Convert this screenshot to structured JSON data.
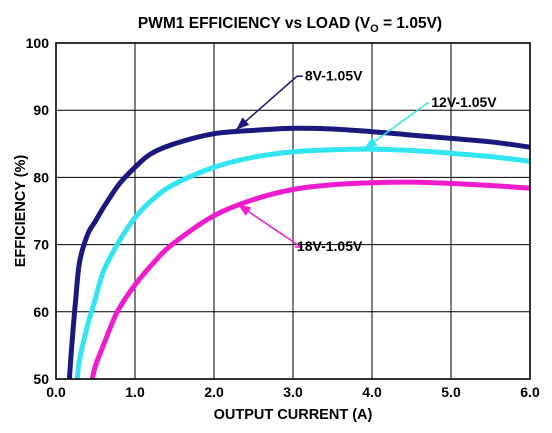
{
  "chart_data": {
    "type": "line",
    "title": {
      "prefix": "PWM1 EFFICIENCY vs LOAD (V",
      "subscript": "O",
      "suffix": " = 1.05V)"
    },
    "xlabel": "OUTPUT CURRENT (A)",
    "ylabel": "EFFICIENCY (%)",
    "xlim": [
      0,
      6
    ],
    "ylim": [
      50,
      100
    ],
    "xticks": [
      0,
      1,
      2,
      3,
      4,
      5,
      6
    ],
    "xtick_labels": [
      "0.0",
      "1.0",
      "2.0",
      "3.0",
      "4.0",
      "5.0",
      "6.0"
    ],
    "yticks": [
      50,
      60,
      70,
      80,
      90,
      100
    ],
    "ytick_labels": [
      "50",
      "60",
      "70",
      "80",
      "90",
      "100"
    ],
    "grid": true,
    "series": [
      {
        "name": "8V-1.05V",
        "color": "#1a1a7e",
        "x": [
          0.17,
          0.2,
          0.25,
          0.3,
          0.4,
          0.5,
          0.6,
          0.8,
          1.0,
          1.2,
          1.5,
          2.0,
          2.5,
          3.0,
          3.5,
          4.0,
          4.5,
          5.0,
          5.5,
          6.0
        ],
        "y": [
          50,
          55,
          62,
          67.5,
          71.5,
          73.5,
          75.5,
          79,
          81.5,
          83.5,
          85,
          86.5,
          87,
          87.3,
          87.2,
          86.8,
          86.3,
          85.8,
          85.3,
          84.5
        ]
      },
      {
        "name": "12V-1.05V",
        "color": "#33e5f0",
        "x": [
          0.27,
          0.3,
          0.4,
          0.5,
          0.6,
          0.8,
          1.0,
          1.25,
          1.5,
          2.0,
          2.5,
          3.0,
          3.5,
          4.0,
          4.5,
          5.0,
          5.5,
          6.0
        ],
        "y": [
          50,
          53,
          58,
          62,
          66,
          70.5,
          74,
          77,
          79,
          81.5,
          83,
          83.8,
          84.1,
          84.2,
          84,
          83.6,
          83.1,
          82.4
        ]
      },
      {
        "name": "18V-1.05V",
        "color": "#ee1ccc",
        "x": [
          0.46,
          0.5,
          0.6,
          0.7,
          0.8,
          1.0,
          1.25,
          1.5,
          2.0,
          2.5,
          3.0,
          3.5,
          4.0,
          4.5,
          5.0,
          5.5,
          6.0
        ],
        "y": [
          50,
          52,
          55,
          58,
          60.5,
          64,
          67.5,
          70.3,
          74.3,
          76.7,
          78.2,
          78.9,
          79.2,
          79.3,
          79.1,
          78.8,
          78.4
        ]
      }
    ],
    "annotations": [
      {
        "text": "8V-1.05V",
        "series": 0,
        "text_x": 3.15,
        "text_y": 95.2,
        "arrow_x": 2.28,
        "arrow_y": 87.1,
        "elbow_x": 3.05
      },
      {
        "text": "12V-1.05V",
        "series": 1,
        "text_x": 4.75,
        "text_y": 91.2,
        "arrow_x": 3.9,
        "arrow_y": 84.2,
        "elbow_x": 4.7
      },
      {
        "text": "18V-1.05V",
        "series": 2,
        "text_x": 3.05,
        "text_y": 69.8,
        "arrow_x": 2.3,
        "arrow_y": 76.0,
        "elbow_x": 3.1
      }
    ]
  }
}
